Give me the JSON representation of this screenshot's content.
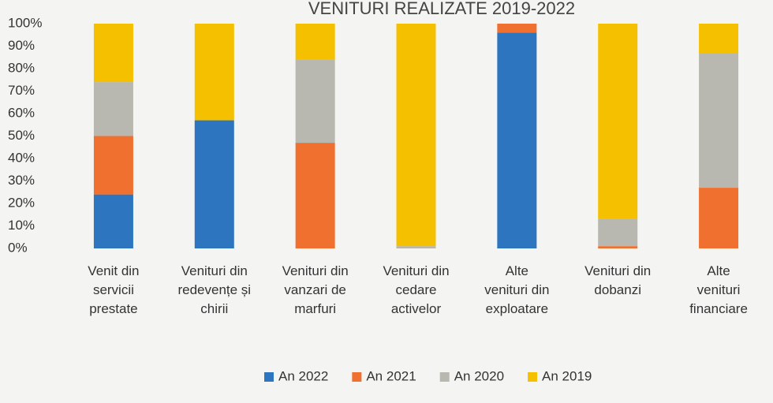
{
  "chart_data": {
    "type": "stacked_bar_100",
    "title": "VENITURI REALIZATE 2019-2022",
    "categories": [
      "Venit din servicii prestate",
      "Venituri din redevențe și chirii",
      "Venituri din vanzari de marfuri",
      "Venituri din cedare activelor",
      "Alte venituri din exploatare",
      "Venituri din dobanzi",
      "Alte venituri financiare"
    ],
    "series": [
      {
        "name": "An 2022",
        "color": "#2e75c0",
        "values": [
          24,
          57,
          0,
          0,
          96,
          0,
          0
        ]
      },
      {
        "name": "An 2021",
        "color": "#f07030",
        "values": [
          26,
          0,
          47,
          0,
          4,
          1,
          27
        ]
      },
      {
        "name": "An 2020",
        "color": "#b8b8b0",
        "values": [
          24,
          0,
          37,
          1,
          0,
          12,
          60
        ]
      },
      {
        "name": "An 2019",
        "color": "#f5c000",
        "values": [
          26,
          43,
          16,
          99,
          0,
          87,
          13
        ]
      }
    ],
    "ylim": [
      0,
      100
    ],
    "yticks": [
      {
        "value": 0,
        "label": "0%"
      },
      {
        "value": 10,
        "label": "10%"
      },
      {
        "value": 20,
        "label": "20%"
      },
      {
        "value": 30,
        "label": "30%"
      },
      {
        "value": 40,
        "label": "40%"
      },
      {
        "value": 50,
        "label": "50%"
      },
      {
        "value": 60,
        "label": "60%"
      },
      {
        "value": 70,
        "label": "70%"
      },
      {
        "value": 80,
        "label": "80%"
      },
      {
        "value": 90,
        "label": "90%"
      },
      {
        "value": 100,
        "label": "100%"
      }
    ],
    "grid": false,
    "legend": "bottom"
  }
}
